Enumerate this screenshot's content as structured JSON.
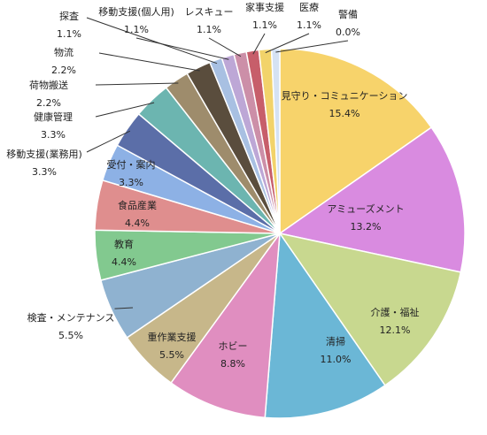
{
  "chart_data": {
    "type": "pie",
    "start": "top, clockwise",
    "label_format": "category name above, percent below",
    "slices": [
      {
        "label": "見守り・コミュニケーション",
        "value": 15.4,
        "display": "15.4%",
        "color": "#f7d36b"
      },
      {
        "label": "アミューズメント",
        "value": 13.2,
        "display": "13.2%",
        "color": "#d98be0"
      },
      {
        "label": "介護・福祉",
        "value": 12.1,
        "display": "12.1%",
        "color": "#c8d88f"
      },
      {
        "label": "清掃",
        "value": 11.0,
        "display": "11.0%",
        "color": "#6bb7d6"
      },
      {
        "label": "ホビー",
        "value": 8.8,
        "display": "8.8%",
        "color": "#e08ec0"
      },
      {
        "label": "重作業支援",
        "value": 5.5,
        "display": "5.5%",
        "color": "#c7b78a"
      },
      {
        "label": "検査・メンテナンス",
        "value": 5.5,
        "display": "5.5%",
        "color": "#8fb2d0"
      },
      {
        "label": "教育",
        "value": 4.4,
        "display": "4.4%",
        "color": "#82c98f"
      },
      {
        "label": "食品産業",
        "value": 4.4,
        "display": "4.4%",
        "color": "#df8e8e"
      },
      {
        "label": "受付・案内",
        "value": 3.3,
        "display": "3.3%",
        "color": "#8db1e5"
      },
      {
        "label": "移動支援(業務用)",
        "value": 3.3,
        "display": "3.3%",
        "color": "#5b6ea8"
      },
      {
        "label": "健康管理",
        "value": 3.3,
        "display": "3.3%",
        "color": "#6cb5b0"
      },
      {
        "label": "荷物搬送",
        "value": 2.2,
        "display": "2.2%",
        "color": "#9e8c6c"
      },
      {
        "label": "物流",
        "value": 2.2,
        "display": "2.2%",
        "color": "#5a4d3d"
      },
      {
        "label": "探査",
        "value": 1.1,
        "display": "1.1%",
        "color": "#a8c0e2"
      },
      {
        "label": "移動支援(個人用)",
        "value": 1.1,
        "display": "1.1%",
        "color": "#bda7d6"
      },
      {
        "label": "レスキュー",
        "value": 1.1,
        "display": "1.1%",
        "color": "#cc8fa8"
      },
      {
        "label": "家事支援",
        "value": 1.1,
        "display": "1.1%",
        "color": "#c75e6a"
      },
      {
        "label": "医療",
        "value": 1.1,
        "display": "1.1%",
        "color": "#f2d36a"
      },
      {
        "label": "警備",
        "value": 0.0,
        "display": "0.0%",
        "color": "#d5e2f3"
      }
    ]
  }
}
